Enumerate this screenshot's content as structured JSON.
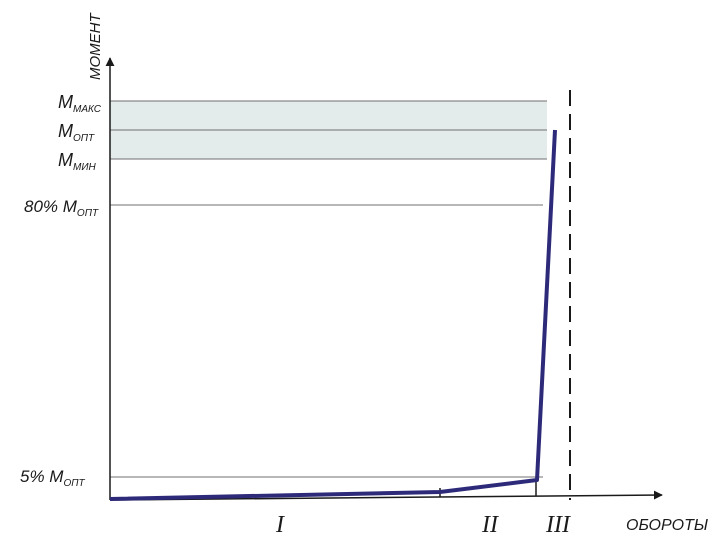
{
  "axes": {
    "y_label": "МОМЕНТ",
    "x_label": "ОБОРОТЫ"
  },
  "levels": {
    "m_max": {
      "main": "M",
      "sub": "МАКС"
    },
    "m_opt": {
      "main": "M",
      "sub": "ОПТ"
    },
    "m_min": {
      "main": "M",
      "sub": "МИН"
    },
    "pct80": {
      "prefix": "80% M",
      "sub": "ОПТ"
    },
    "pct5": {
      "prefix": "5% M",
      "sub": "ОПТ"
    }
  },
  "zones": [
    "I",
    "II",
    "III"
  ],
  "colors": {
    "curve": "#2e2a7a",
    "band": "#e4ebeb",
    "axis": "#1a1a1a",
    "gridline": "#6f6f6f"
  }
}
